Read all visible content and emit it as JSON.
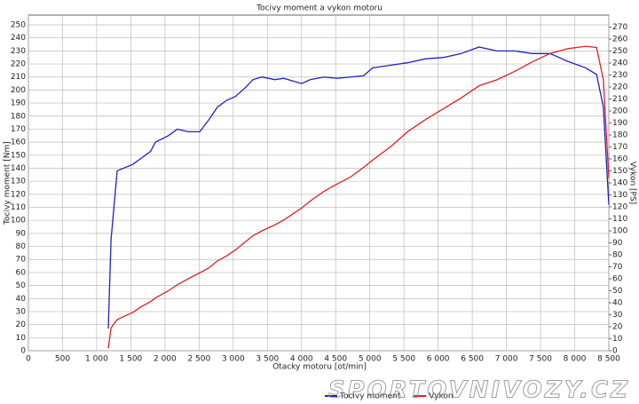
{
  "chart_data": {
    "type": "line",
    "title": "Tocivy moment a vykon motoru",
    "x_label": "Otacky motoru [ot/min]",
    "y_label": "Tocivy moment [Nm]",
    "y2_label": "Vykon [PS]",
    "watermark": "SPORTOVNIVOZY.CZ",
    "grid": true,
    "legend": "bottom",
    "xlim": [
      0,
      8500
    ],
    "xticks": [
      0,
      500,
      {
        "value": 1000,
        "label": "1 000"
      },
      {
        "value": 1500,
        "label": "1 500"
      },
      {
        "value": 2000,
        "label": "2 000"
      },
      {
        "value": 2500,
        "label": "2 500"
      },
      {
        "value": 3000,
        "label": "3 000"
      },
      {
        "value": 3500,
        "label": "3 500"
      },
      {
        "value": 4000,
        "label": "4 000"
      },
      {
        "value": 4500,
        "label": "4 500"
      },
      {
        "value": 5000,
        "label": "5 000"
      },
      {
        "value": 5500,
        "label": "5 500"
      },
      {
        "value": 6000,
        "label": "6 000"
      },
      {
        "value": 6500,
        "label": "6 500"
      },
      {
        "value": 7000,
        "label": "7 000"
      },
      {
        "value": 7500,
        "label": "7 500"
      },
      {
        "value": 8000,
        "label": "8 000"
      },
      {
        "value": 8500,
        "label": "8 500"
      }
    ],
    "ylim": [
      0,
      257.5
    ],
    "yticks": [
      0,
      10,
      20,
      30,
      40,
      50,
      60,
      70,
      80,
      90,
      100,
      110,
      120,
      130,
      140,
      150,
      160,
      170,
      180,
      190,
      200,
      210,
      220,
      230,
      240,
      250
    ],
    "y2lim": [
      0,
      280
    ],
    "y2ticks": [
      0,
      10,
      20,
      30,
      40,
      50,
      60,
      70,
      80,
      90,
      100,
      110,
      120,
      130,
      140,
      150,
      160,
      170,
      180,
      190,
      200,
      210,
      220,
      230,
      240,
      250,
      260,
      270
    ],
    "x": [
      1170,
      1210,
      1300,
      1530,
      1660,
      1790,
      1860,
      2050,
      2180,
      2340,
      2510,
      2640,
      2770,
      2900,
      3030,
      3160,
      3290,
      3420,
      3610,
      3740,
      4000,
      4130,
      4330,
      4520,
      4720,
      4910,
      5040,
      5300,
      5560,
      5820,
      6080,
      6340,
      6600,
      6860,
      7120,
      7380,
      7640,
      7900,
      8160,
      8320,
      8420,
      8500
    ],
    "series": [
      {
        "name": "Tocivy moment",
        "color": "#1f1fc8",
        "values": [
          17,
          85,
          138,
          143,
          148,
          153,
          160,
          165,
          170,
          168,
          168,
          177,
          187,
          192,
          195,
          201,
          208,
          210,
          208,
          209,
          205,
          208,
          210,
          209,
          210,
          211,
          217,
          219,
          221,
          224,
          225,
          228,
          233,
          230,
          230,
          228,
          228,
          222,
          217,
          212,
          187,
          112
        ]
      },
      {
        "name": "Vykon",
        "color": "#e02020",
        "axis": "y2",
        "values": [
          2,
          19,
          26,
          32,
          37,
          41,
          44,
          50,
          55,
          60,
          65,
          69,
          75,
          79,
          84,
          90,
          96,
          100,
          105,
          109,
          119,
          125,
          133,
          139,
          145,
          153,
          159,
          170,
          183,
          193,
          202,
          211,
          221,
          226,
          233,
          241,
          248,
          252,
          254,
          253,
          226,
          144
        ]
      }
    ]
  }
}
